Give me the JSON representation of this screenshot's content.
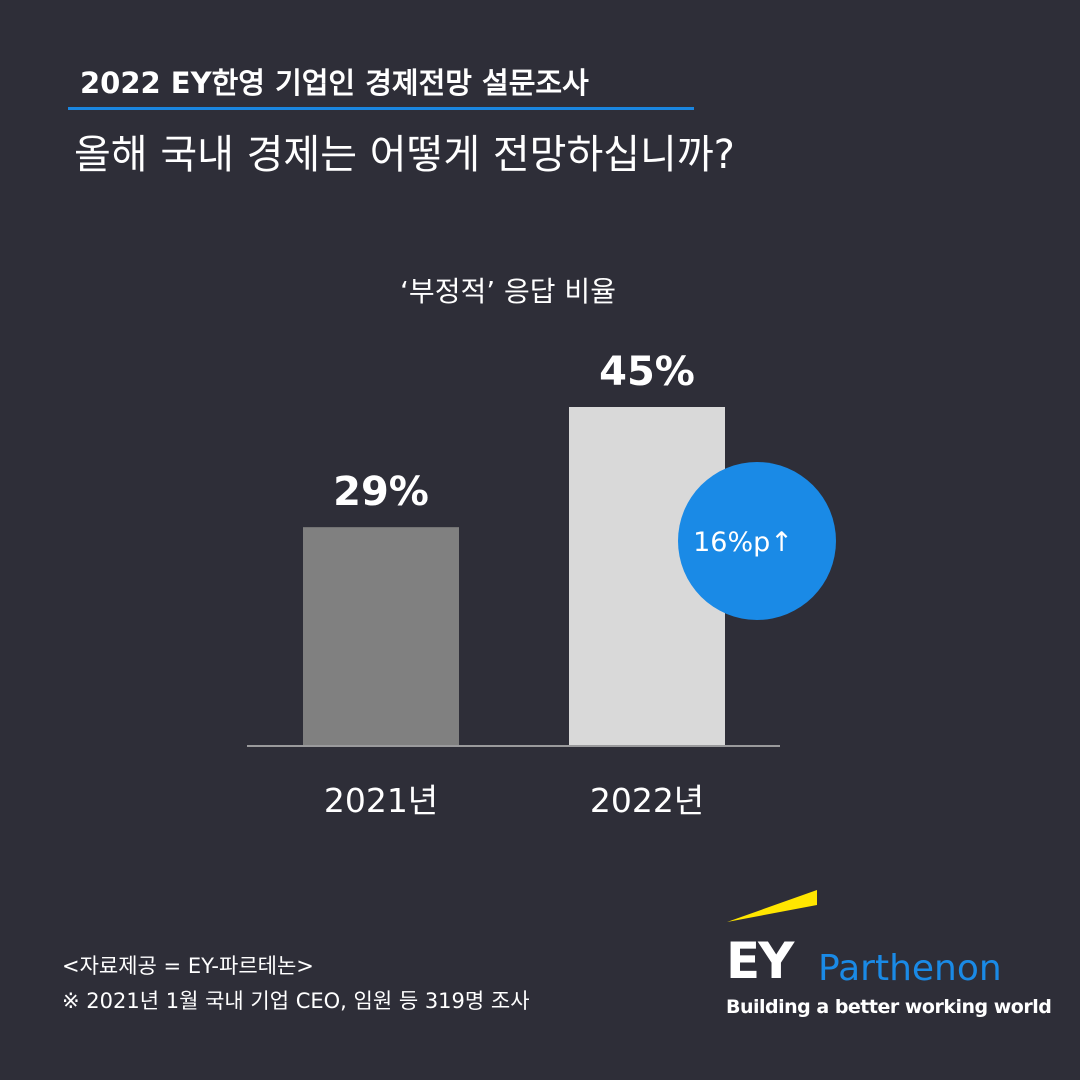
{
  "header": {
    "kicker": "2022 EY한영 기업인 경제전망 설문조사",
    "question": "올해 국내 경제는 어떻게 전망하십니까?"
  },
  "chart_data": {
    "type": "bar",
    "title": "‘부정적’  응답 비율",
    "categories": [
      "2021년",
      "2022년"
    ],
    "values": [
      29,
      45
    ],
    "data_labels": [
      "29%",
      "45%"
    ],
    "unit": "%",
    "ylim": [
      0,
      45
    ],
    "grid": false,
    "bar_colors": [
      "#808080",
      "#d9d9d9"
    ],
    "annotation": {
      "text": "16%p↑",
      "color": "#1a8ae6"
    }
  },
  "footer": {
    "source": "<자료제공 = EY-파르테논>",
    "note": "※ 2021년 1월 국내 기업 CEO, 임원 등 319명 조사"
  },
  "logo": {
    "brand": "EY",
    "name": "Parthenon",
    "tagline": "Building a better working world",
    "accent": "#ffe600"
  },
  "colors": {
    "background": "#2e2e38",
    "accent_blue": "#1a86e0"
  }
}
